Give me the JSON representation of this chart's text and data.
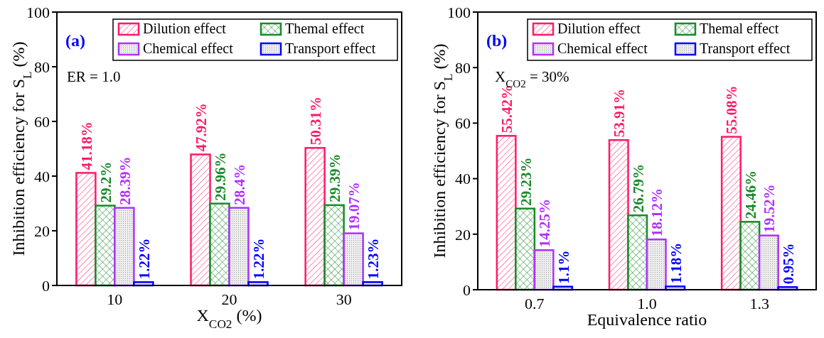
{
  "chart_data": [
    {
      "type": "bar",
      "ylabel": "Inhibition efficiency for S$_{L}$ (%)",
      "xlabel": "X$_{CO2}$ (%)",
      "categories": [
        "10",
        "20",
        "30"
      ],
      "ylim": [
        0,
        100
      ],
      "yticks": [
        0,
        20,
        40,
        60,
        80,
        100
      ],
      "legend": "top right",
      "annotations": [
        "(a)",
        "ER = 1.0"
      ],
      "series": [
        {
          "name": "Dilution effect",
          "color": "#ff1a66",
          "values": [
            41.18,
            47.92,
            50.31
          ],
          "value_labels": [
            "41.18%",
            "47.92%",
            "50.31%"
          ]
        },
        {
          "name": "Themal effect",
          "color": "#1a8a2a",
          "values": [
            29.2,
            29.96,
            29.39
          ],
          "value_labels": [
            "29.2%",
            "29.96%",
            "29.39%"
          ]
        },
        {
          "name": "Chemical effect",
          "color": "#b030ff",
          "values": [
            28.39,
            28.4,
            19.07
          ],
          "value_labels": [
            "28.39%",
            "28.4%",
            "19.07%"
          ]
        },
        {
          "name": "Transport effect",
          "color": "#0000ff",
          "values": [
            1.22,
            1.22,
            1.23
          ],
          "value_labels": [
            "1.22%",
            "1.22%",
            "1.23%"
          ]
        }
      ]
    },
    {
      "type": "bar",
      "ylabel": "Inhibition efficiency for S$_{L}$ (%)",
      "xlabel": "Equivalence ratio",
      "categories": [
        "0.7",
        "1.0",
        "1.3"
      ],
      "ylim": [
        0,
        100
      ],
      "yticks": [
        0,
        20,
        40,
        60,
        80,
        100
      ],
      "legend": "top right",
      "annotations": [
        "(b)",
        "X$_{CO2}$ = 30%"
      ],
      "series": [
        {
          "name": "Dilution effect",
          "color": "#ff1a66",
          "values": [
            55.42,
            53.91,
            55.08
          ],
          "value_labels": [
            "55.42%",
            "53.91%",
            "55.08%"
          ]
        },
        {
          "name": "Themal effect",
          "color": "#1a8a2a",
          "values": [
            29.23,
            26.79,
            24.46
          ],
          "value_labels": [
            "29.23%",
            "26.79%",
            "24.46%"
          ]
        },
        {
          "name": "Chemical effect",
          "color": "#b030ff",
          "values": [
            14.25,
            18.12,
            19.52
          ],
          "value_labels": [
            "14.25%",
            "18.12%",
            "19.52%"
          ]
        },
        {
          "name": "Transport effect",
          "color": "#0000ff",
          "values": [
            1.1,
            1.18,
            0.95
          ],
          "value_labels": [
            "1.1%",
            "1.18%",
            "0.95%"
          ]
        }
      ]
    }
  ]
}
